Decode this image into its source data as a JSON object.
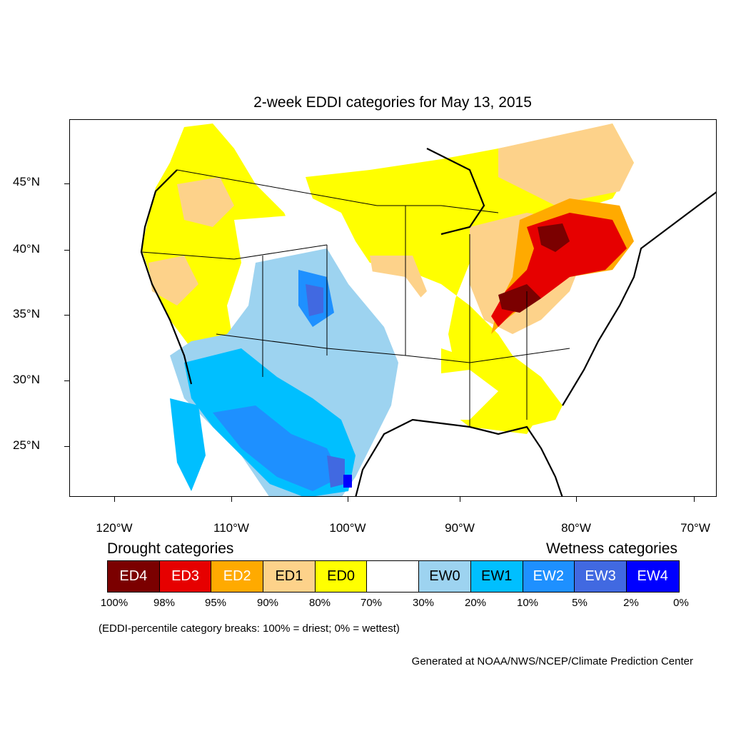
{
  "title": "2-week EDDI categories for May 13, 2015",
  "lat_labels": [
    "45°N",
    "40°N",
    "35°N",
    "30°N",
    "25°N"
  ],
  "lon_labels": [
    "120°W",
    "110°W",
    "100°W",
    "90°W",
    "80°W",
    "70°W"
  ],
  "legend": {
    "drought_heading": "Drought categories",
    "wetness_heading": "Wetness categories",
    "categories": [
      {
        "label": "ED4",
        "color": "#7b0000",
        "text_color": "#ffffff"
      },
      {
        "label": "ED3",
        "color": "#e60000",
        "text_color": "#ffffff"
      },
      {
        "label": "ED2",
        "color": "#ffaa00",
        "text_color": "#ffffff"
      },
      {
        "label": "ED1",
        "color": "#fdd28a",
        "text_color": "#000000"
      },
      {
        "label": "ED0",
        "color": "#ffff00",
        "text_color": "#000000"
      },
      {
        "label": "",
        "color": "#ffffff",
        "text_color": "#000000"
      },
      {
        "label": "EW0",
        "color": "#9dd3f0",
        "text_color": "#000000"
      },
      {
        "label": "EW1",
        "color": "#00bfff",
        "text_color": "#000000"
      },
      {
        "label": "EW2",
        "color": "#1e90ff",
        "text_color": "#ffffff"
      },
      {
        "label": "EW3",
        "color": "#4169e1",
        "text_color": "#ffffff"
      },
      {
        "label": "EW4",
        "color": "#0000ff",
        "text_color": "#ffffff"
      }
    ],
    "percentiles": [
      "100%",
      "98%",
      "95%",
      "90%",
      "80%",
      "70%",
      "30%",
      "20%",
      "10%",
      "5%",
      "2%",
      "0%"
    ]
  },
  "note": "(EDDI-percentile category breaks: 100% = driest; 0% = wettest)",
  "credit": "Generated at NOAA/NWS/NCEP/Climate Prediction Center"
}
